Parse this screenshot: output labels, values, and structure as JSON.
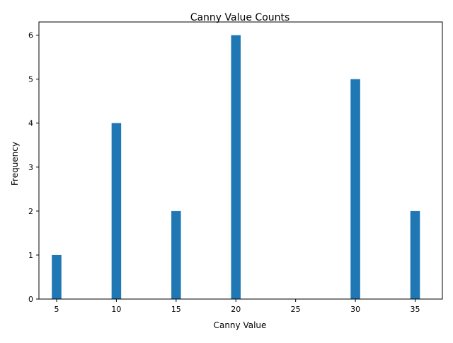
{
  "chart_data": {
    "type": "bar",
    "title": "Canny Value Counts",
    "xlabel": "Canny Value",
    "ylabel": "Frequency",
    "x": [
      5,
      10,
      15,
      20,
      30,
      35
    ],
    "values": [
      1,
      4,
      2,
      6,
      5,
      2
    ],
    "bar_width": 0.8,
    "xlim": [
      3.52,
      37.28
    ],
    "ylim": [
      0,
      6.3
    ],
    "xticks": [
      5,
      10,
      15,
      20,
      25,
      30,
      35
    ],
    "yticks": [
      0,
      1,
      2,
      3,
      4,
      5,
      6
    ],
    "grid": false,
    "legend": "none",
    "bar_color": "#1f77b4"
  }
}
